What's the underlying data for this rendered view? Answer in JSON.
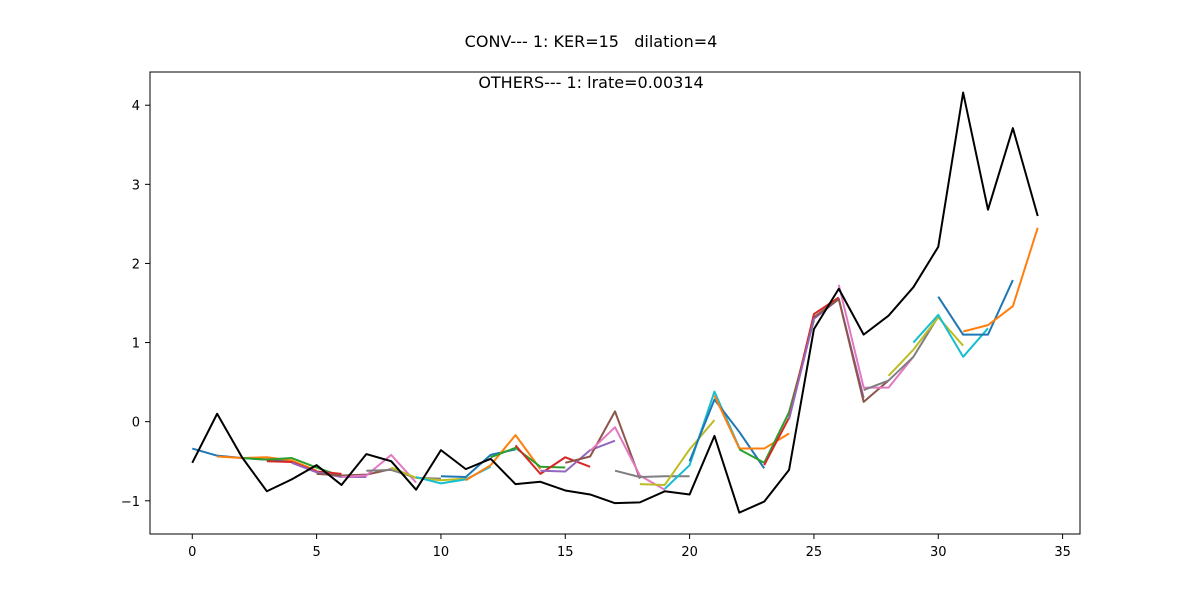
{
  "chart_data": {
    "type": "line",
    "title": "CONV--- 1: KER=15   dilation=4",
    "subtitle": "OTHERS--- 1: lrate=0.00314",
    "xlabel": "",
    "ylabel": "",
    "xlim": [
      -1.7,
      35.7
    ],
    "ylim": [
      -1.42,
      4.42
    ],
    "xticks": [
      0,
      5,
      10,
      15,
      20,
      25,
      30,
      35
    ],
    "yticks": [
      -1,
      0,
      1,
      2,
      3,
      4
    ],
    "grid": false,
    "legend": "none",
    "truth": {
      "color": "#000000",
      "x": [
        0,
        1,
        2,
        3,
        4,
        5,
        6,
        7,
        8,
        9,
        10,
        11,
        12,
        13,
        14,
        15,
        16,
        17,
        18,
        19,
        20,
        21,
        22,
        23,
        24,
        25,
        26,
        27,
        28,
        29,
        30,
        31,
        32,
        33,
        34
      ],
      "values": [
        -0.52,
        0.1,
        -0.45,
        -0.88,
        -0.73,
        -0.55,
        -0.8,
        -0.41,
        -0.5,
        -0.86,
        -0.36,
        -0.6,
        -0.47,
        -0.79,
        -0.76,
        -0.87,
        -0.92,
        -1.03,
        -1.02,
        -0.88,
        -0.92,
        -0.18,
        -1.15,
        -1.01,
        -0.61,
        1.17,
        1.68,
        1.1,
        1.34,
        1.7,
        2.21,
        4.16,
        2.68,
        3.71,
        2.6
      ]
    },
    "series": [
      {
        "color": "#1f77b4",
        "x": [
          0,
          1,
          2,
          3,
          4
        ],
        "values": [
          -0.34,
          -0.43,
          -0.46,
          -0.48,
          -0.5
        ]
      },
      {
        "color": "#ff7f0e",
        "x": [
          1,
          2,
          3,
          4,
          5
        ],
        "values": [
          -0.44,
          -0.46,
          -0.45,
          -0.49,
          -0.62
        ]
      },
      {
        "color": "#2ca02c",
        "x": [
          2,
          3,
          4,
          5,
          6
        ],
        "values": [
          -0.46,
          -0.48,
          -0.46,
          -0.58,
          -0.69
        ]
      },
      {
        "color": "#d62728",
        "x": [
          3,
          4,
          5,
          6
        ],
        "values": [
          -0.5,
          -0.51,
          -0.63,
          -0.66
        ]
      },
      {
        "color": "#9467bd",
        "x": [
          4,
          5,
          6,
          7
        ],
        "values": [
          -0.52,
          -0.64,
          -0.7,
          -0.7
        ]
      },
      {
        "color": "#8c564b",
        "x": [
          5,
          6,
          7,
          8
        ],
        "values": [
          -0.66,
          -0.68,
          -0.67,
          -0.6
        ]
      },
      {
        "color": "#e377c2",
        "x": [
          6,
          7,
          8,
          9
        ],
        "values": [
          -0.7,
          -0.68,
          -0.42,
          -0.77
        ]
      },
      {
        "color": "#7f7f7f",
        "x": [
          7,
          8,
          9,
          10
        ],
        "values": [
          -0.62,
          -0.61,
          -0.71,
          -0.72
        ]
      },
      {
        "color": "#bcbd22",
        "x": [
          8,
          9,
          10,
          11
        ],
        "values": [
          -0.58,
          -0.71,
          -0.74,
          -0.72
        ]
      },
      {
        "color": "#17becf",
        "x": [
          9,
          10,
          11,
          12
        ],
        "values": [
          -0.7,
          -0.78,
          -0.73,
          -0.57
        ]
      },
      {
        "color": "#1f77b4",
        "x": [
          10,
          11,
          12,
          13
        ],
        "values": [
          -0.69,
          -0.7,
          -0.42,
          -0.35
        ]
      },
      {
        "color": "#ff7f0e",
        "x": [
          11,
          12,
          13,
          14
        ],
        "values": [
          -0.74,
          -0.55,
          -0.17,
          -0.6
        ]
      },
      {
        "color": "#2ca02c",
        "x": [
          12,
          13,
          14,
          15
        ],
        "values": [
          -0.45,
          -0.33,
          -0.57,
          -0.58
        ]
      },
      {
        "color": "#d62728",
        "x": [
          13,
          14,
          15,
          16
        ],
        "values": [
          -0.3,
          -0.66,
          -0.45,
          -0.57
        ]
      },
      {
        "color": "#9467bd",
        "x": [
          14,
          15,
          16,
          17
        ],
        "values": [
          -0.62,
          -0.63,
          -0.36,
          -0.24
        ]
      },
      {
        "color": "#8c564b",
        "x": [
          15,
          16,
          17,
          18
        ],
        "values": [
          -0.52,
          -0.44,
          0.13,
          -0.72
        ]
      },
      {
        "color": "#e377c2",
        "x": [
          16,
          17,
          18,
          19
        ],
        "values": [
          -0.37,
          -0.07,
          -0.68,
          -0.86
        ]
      },
      {
        "color": "#7f7f7f",
        "x": [
          17,
          18,
          19,
          20
        ],
        "values": [
          -0.62,
          -0.7,
          -0.69,
          -0.69
        ]
      },
      {
        "color": "#bcbd22",
        "x": [
          18,
          19,
          20,
          21
        ],
        "values": [
          -0.79,
          -0.8,
          -0.35,
          0.02
        ]
      },
      {
        "color": "#17becf",
        "x": [
          19,
          20,
          21,
          22
        ],
        "values": [
          -0.85,
          -0.55,
          0.38,
          -0.33
        ]
      },
      {
        "color": "#1f77b4",
        "x": [
          20,
          21,
          22,
          23
        ],
        "values": [
          -0.5,
          0.28,
          -0.13,
          -0.59
        ]
      },
      {
        "color": "#ff7f0e",
        "x": [
          21,
          22,
          23,
          24
        ],
        "values": [
          0.33,
          -0.34,
          -0.34,
          -0.15
        ]
      },
      {
        "color": "#2ca02c",
        "x": [
          22,
          23,
          24,
          25
        ],
        "values": [
          -0.35,
          -0.52,
          0.12,
          1.28
        ]
      },
      {
        "color": "#d62728",
        "x": [
          23,
          24,
          25,
          26
        ],
        "values": [
          -0.55,
          0.05,
          1.36,
          1.57
        ]
      },
      {
        "color": "#9467bd",
        "x": [
          24,
          25,
          26,
          27
        ],
        "values": [
          0.03,
          1.3,
          1.55,
          0.3
        ]
      },
      {
        "color": "#8c564b",
        "x": [
          25,
          26,
          27,
          28
        ],
        "values": [
          1.32,
          1.55,
          0.25,
          0.52
        ]
      },
      {
        "color": "#e377c2",
        "x": [
          26,
          27,
          28,
          29
        ],
        "values": [
          1.73,
          0.43,
          0.43,
          0.82
        ]
      },
      {
        "color": "#7f7f7f",
        "x": [
          27,
          28,
          29,
          30
        ],
        "values": [
          0.4,
          0.52,
          0.82,
          1.33
        ]
      },
      {
        "color": "#bcbd22",
        "x": [
          28,
          29,
          30,
          31
        ],
        "values": [
          0.58,
          0.91,
          1.32,
          0.96
        ]
      },
      {
        "color": "#17becf",
        "x": [
          29,
          30,
          31,
          32
        ],
        "values": [
          1.0,
          1.35,
          0.82,
          1.18
        ]
      },
      {
        "color": "#1f77b4",
        "x": [
          30,
          31,
          32,
          33
        ],
        "values": [
          1.58,
          1.1,
          1.1,
          1.79
        ]
      },
      {
        "color": "#ff7f0e",
        "x": [
          31,
          32,
          33,
          34
        ],
        "values": [
          1.14,
          1.22,
          1.46,
          2.45
        ]
      }
    ]
  }
}
